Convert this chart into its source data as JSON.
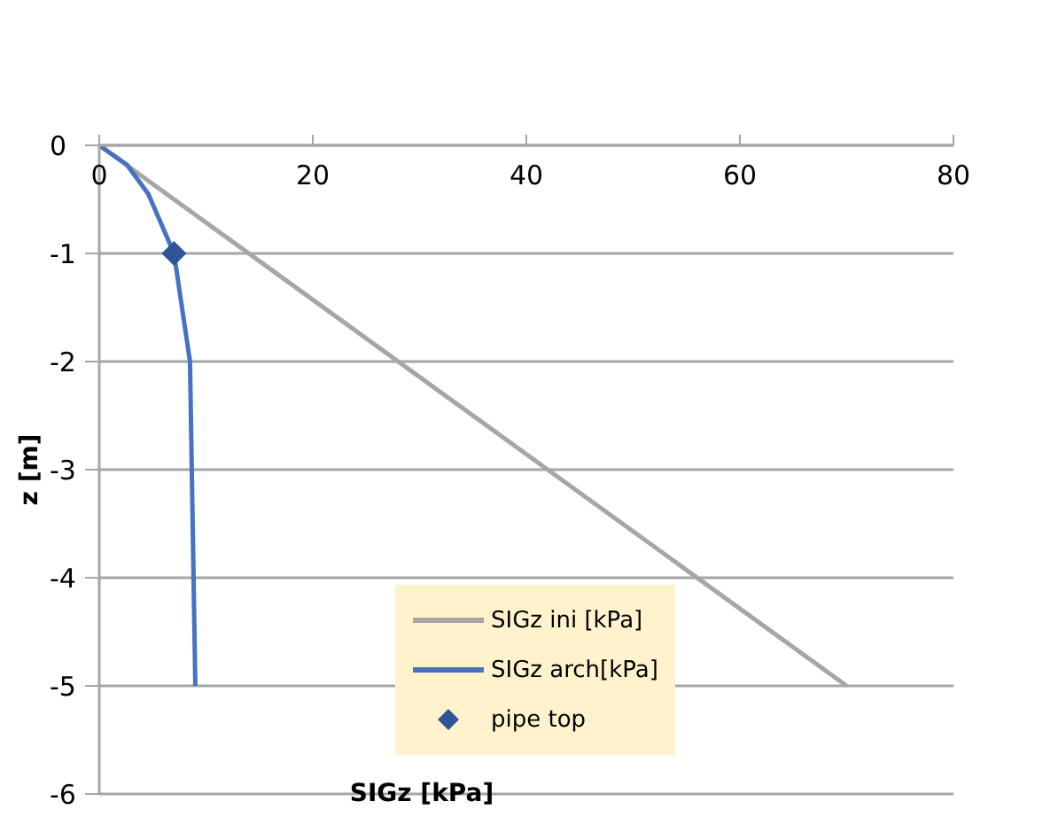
{
  "chart_data": {
    "type": "line",
    "xlabel": "SIGz [kPa]",
    "ylabel": "z [m]",
    "xlim": [
      0,
      80
    ],
    "xticks": [
      0,
      20,
      40,
      60,
      80
    ],
    "ylim": [
      -6,
      0
    ],
    "yticks": [
      -6,
      -5,
      -4,
      -3,
      -2,
      -1,
      0
    ],
    "grid": "y",
    "legend": "bottom right",
    "marker": "none",
    "series": [
      {
        "name": "SIGz ini [kPa]",
        "color": "#a6a6a6",
        "x": [
          0,
          70
        ],
        "values": [
          0,
          -5
        ]
      },
      {
        "name": "SIGz arch[kPa]",
        "color": "#4472c4",
        "x": [
          0,
          2.6,
          4.6,
          7,
          8.5,
          9
        ],
        "values": [
          0,
          -0.18,
          -0.45,
          -1,
          -2,
          -5
        ]
      },
      {
        "name": "pipe top",
        "type": "scatter",
        "marker": "diamond",
        "color": "#2f5597",
        "x": [
          7
        ],
        "values": [
          -1
        ]
      }
    ]
  }
}
